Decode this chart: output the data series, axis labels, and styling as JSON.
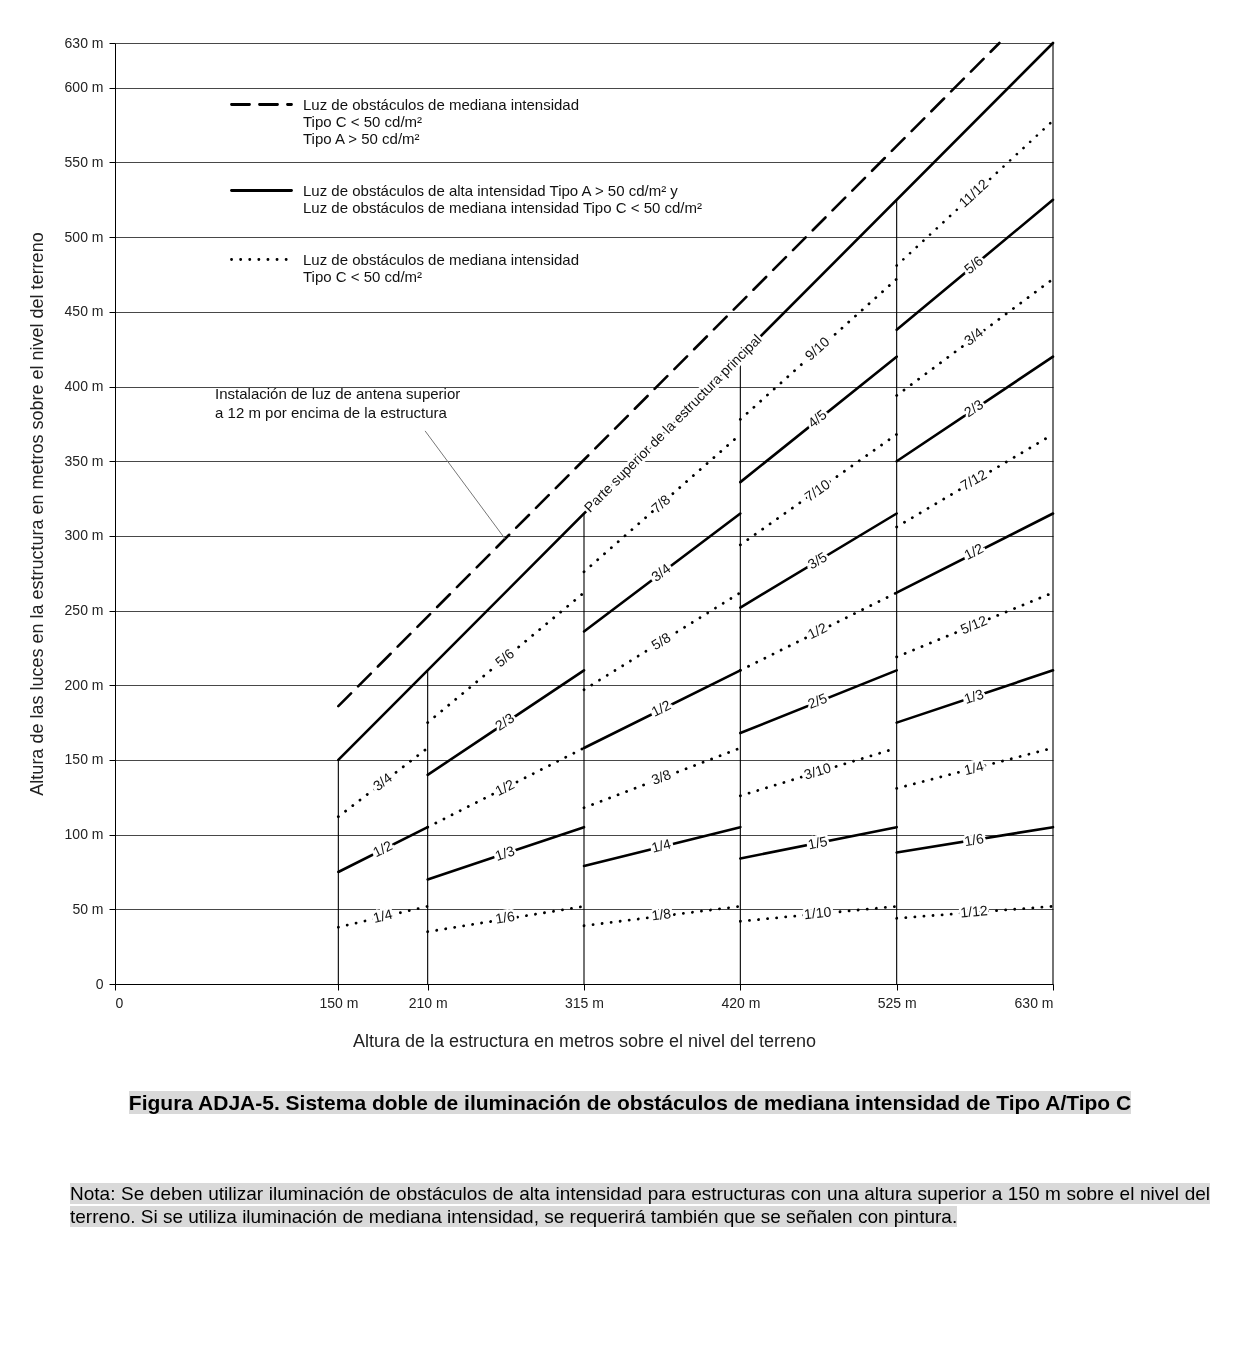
{
  "chart_data": {
    "type": "line",
    "title": "Figura ADJA-5. Sistema doble de iluminación de obstáculos de mediana intensidad de Tipo A/Tipo C",
    "xlabel": "Altura de la estructura en metros sobre el nivel del terreno",
    "ylabel": "Altura de las luces en la estructura en metros sobre el nivel del terreno",
    "xlim": [
      0,
      630
    ],
    "ylim": [
      0,
      630
    ],
    "xticks": [
      0,
      {
        "value": 150,
        "label": "150 m"
      },
      {
        "value": 210,
        "label": "210 m"
      },
      {
        "value": 315,
        "label": "315 m"
      },
      {
        "value": 420,
        "label": "420 m"
      },
      {
        "value": 525,
        "label": "525 m"
      },
      {
        "value": 630,
        "label": "630 m"
      }
    ],
    "yticks": [
      0,
      {
        "value": 50,
        "label": "50 m"
      },
      {
        "value": 100,
        "label": "100 m"
      },
      {
        "value": 150,
        "label": "150 m"
      },
      {
        "value": 200,
        "label": "200 m"
      },
      {
        "value": 250,
        "label": "250 m"
      },
      {
        "value": 300,
        "label": "300 m"
      },
      {
        "value": 350,
        "label": "350 m"
      },
      {
        "value": 400,
        "label": "400 m"
      },
      {
        "value": 450,
        "label": "450 m"
      },
      {
        "value": 500,
        "label": "500 m"
      },
      {
        "value": 550,
        "label": "550 m"
      },
      {
        "value": 600,
        "label": "600 m"
      },
      {
        "value": 630,
        "label": "630 m"
      }
    ],
    "grid": "y",
    "legend": "top left",
    "series": [
      {
        "name": "Luz de obstáculos de mediana intensidad\nTipo C < 50 cd/m²\nTipo A > 50 cd/m²",
        "color": "#000000",
        "line_style": "dashed",
        "x": [
          150,
          594
        ],
        "values": [
          186,
          630
        ]
      },
      {
        "name": "Luz de obstáculos de alta intensidad Tipo A > 50 cd/m² y\nLuz de obstáculos de mediana intensidad Tipo C < 50 cd/m²",
        "color": "#000000",
        "line_style": "solid",
        "x": [
          150,
          630
        ],
        "values": [
          150,
          630
        ]
      },
      {
        "name": "Luz de obstáculos de mediana intensidad\nTipo C < 50 cd/m²",
        "color": "#000000",
        "line_style": "dotted",
        "x": [
          525,
          630
        ],
        "values": [
          481,
          578
        ]
      },
      {
        "color": "#000000",
        "line_style": "solid",
        "x": [
          150,
          210
        ],
        "values": [
          75,
          105
        ]
      },
      {
        "color": "#000000",
        "line_style": "solid",
        "x": [
          210,
          315
        ],
        "values": [
          140,
          210
        ]
      },
      {
        "color": "#000000",
        "line_style": "solid",
        "x": [
          210,
          315
        ],
        "values": [
          70,
          105
        ]
      },
      {
        "color": "#000000",
        "line_style": "solid",
        "x": [
          315,
          420
        ],
        "values": [
          236,
          315
        ]
      },
      {
        "color": "#000000",
        "line_style": "solid",
        "x": [
          315,
          420
        ],
        "values": [
          158,
          210
        ]
      },
      {
        "color": "#000000",
        "line_style": "solid",
        "x": [
          315,
          420
        ],
        "values": [
          79,
          105
        ]
      },
      {
        "color": "#000000",
        "line_style": "solid",
        "x": [
          420,
          525
        ],
        "values": [
          336,
          420
        ]
      },
      {
        "color": "#000000",
        "line_style": "solid",
        "x": [
          420,
          525
        ],
        "values": [
          252,
          315
        ]
      },
      {
        "color": "#000000",
        "line_style": "solid",
        "x": [
          420,
          525
        ],
        "values": [
          168,
          210
        ]
      },
      {
        "color": "#000000",
        "line_style": "solid",
        "x": [
          420,
          525
        ],
        "values": [
          84,
          105
        ]
      },
      {
        "color": "#000000",
        "line_style": "solid",
        "x": [
          525,
          630
        ],
        "values": [
          438,
          525
        ]
      },
      {
        "color": "#000000",
        "line_style": "solid",
        "x": [
          525,
          630
        ],
        "values": [
          350,
          420
        ]
      },
      {
        "color": "#000000",
        "line_style": "solid",
        "x": [
          525,
          630
        ],
        "values": [
          262,
          315
        ]
      },
      {
        "color": "#000000",
        "line_style": "solid",
        "x": [
          525,
          630
        ],
        "values": [
          175,
          210
        ]
      },
      {
        "color": "#000000",
        "line_style": "solid",
        "x": [
          525,
          630
        ],
        "values": [
          88,
          105
        ]
      },
      {
        "color": "#000000",
        "line_style": "dotted",
        "x": [
          150,
          210
        ],
        "values": [
          112,
          158
        ]
      },
      {
        "color": "#000000",
        "line_style": "dotted",
        "x": [
          150,
          210
        ],
        "values": [
          38,
          52
        ]
      },
      {
        "color": "#000000",
        "line_style": "dotted",
        "x": [
          210,
          315
        ],
        "values": [
          175,
          262
        ]
      },
      {
        "color": "#000000",
        "line_style": "dotted",
        "x": [
          210,
          315
        ],
        "values": [
          105,
          158
        ]
      },
      {
        "color": "#000000",
        "line_style": "dotted",
        "x": [
          210,
          315
        ],
        "values": [
          35,
          52
        ]
      },
      {
        "color": "#000000",
        "line_style": "dotted",
        "x": [
          315,
          420
        ],
        "values": [
          276,
          368
        ]
      },
      {
        "color": "#000000",
        "line_style": "dotted",
        "x": [
          315,
          420
        ],
        "values": [
          197,
          262
        ]
      },
      {
        "color": "#000000",
        "line_style": "dotted",
        "x": [
          315,
          420
        ],
        "values": [
          118,
          158
        ]
      },
      {
        "color": "#000000",
        "line_style": "dotted",
        "x": [
          315,
          420
        ],
        "values": [
          39,
          52
        ]
      },
      {
        "color": "#000000",
        "line_style": "dotted",
        "x": [
          420,
          525
        ],
        "values": [
          378,
          472
        ]
      },
      {
        "color": "#000000",
        "line_style": "dotted",
        "x": [
          420,
          525
        ],
        "values": [
          294,
          368
        ]
      },
      {
        "color": "#000000",
        "line_style": "dotted",
        "x": [
          420,
          525
        ],
        "values": [
          210,
          262
        ]
      },
      {
        "color": "#000000",
        "line_style": "dotted",
        "x": [
          420,
          525
        ],
        "values": [
          126,
          158
        ]
      },
      {
        "color": "#000000",
        "line_style": "dotted",
        "x": [
          420,
          525
        ],
        "values": [
          42,
          52
        ]
      },
      {
        "color": "#000000",
        "line_style": "dotted",
        "x": [
          525,
          630
        ],
        "values": [
          394,
          472
        ]
      },
      {
        "color": "#000000",
        "line_style": "dotted",
        "x": [
          525,
          630
        ],
        "values": [
          306,
          368
        ]
      },
      {
        "color": "#000000",
        "line_style": "dotted",
        "x": [
          525,
          630
        ],
        "values": [
          219,
          262
        ]
      },
      {
        "color": "#000000",
        "line_style": "dotted",
        "x": [
          525,
          630
        ],
        "values": [
          131,
          158
        ]
      },
      {
        "color": "#000000",
        "line_style": "dotted",
        "x": [
          525,
          630
        ],
        "values": [
          44,
          52
        ]
      },
      {
        "color": "#000000",
        "line_style": "solid",
        "x": [
          150,
          150
        ],
        "values": [
          0,
          150
        ]
      },
      {
        "color": "#000000",
        "line_style": "solid",
        "x": [
          210,
          210
        ],
        "values": [
          0,
          210
        ]
      },
      {
        "color": "#000000",
        "line_style": "solid",
        "x": [
          315,
          315
        ],
        "values": [
          0,
          315
        ]
      },
      {
        "color": "#000000",
        "line_style": "solid",
        "x": [
          420,
          420
        ],
        "values": [
          0,
          420
        ]
      },
      {
        "color": "#000000",
        "line_style": "solid",
        "x": [
          525,
          525
        ],
        "values": [
          0,
          525
        ]
      }
    ],
    "ref_lines": [
      {
        "axis": "x",
        "value": 630,
        "color": "#000000"
      }
    ],
    "annotations": [
      {
        "text": "Instalación de luz de antena superior\na 12 m por encima de la estructura",
        "x": 262,
        "y": 298
      },
      {
        "text": "Parte superior de la estructura principal",
        "x": 375,
        "y": 375
      },
      {
        "text": "3/4",
        "x": 180,
        "y": 135
      },
      {
        "text": "1/2",
        "x": 180,
        "y": 90
      },
      {
        "text": "1/4",
        "x": 180,
        "y": 45
      },
      {
        "text": "5/6",
        "x": 262,
        "y": 218
      },
      {
        "text": "2/3",
        "x": 262,
        "y": 175
      },
      {
        "text": "1/2",
        "x": 262,
        "y": 131
      },
      {
        "text": "1/3",
        "x": 262,
        "y": 87
      },
      {
        "text": "1/6",
        "x": 262,
        "y": 44
      },
      {
        "text": "7/8",
        "x": 367,
        "y": 321
      },
      {
        "text": "3/4",
        "x": 367,
        "y": 275
      },
      {
        "text": "5/8",
        "x": 367,
        "y": 229
      },
      {
        "text": "1/2",
        "x": 367,
        "y": 184
      },
      {
        "text": "3/8",
        "x": 367,
        "y": 138
      },
      {
        "text": "1/4",
        "x": 367,
        "y": 92
      },
      {
        "text": "1/8",
        "x": 367,
        "y": 46
      },
      {
        "text": "9/10",
        "x": 472,
        "y": 425
      },
      {
        "text": "4/5",
        "x": 472,
        "y": 378
      },
      {
        "text": "7/10",
        "x": 472,
        "y": 330
      },
      {
        "text": "3/5",
        "x": 472,
        "y": 283
      },
      {
        "text": "1/2",
        "x": 472,
        "y": 236
      },
      {
        "text": "2/5",
        "x": 472,
        "y": 189
      },
      {
        "text": "3/10",
        "x": 472,
        "y": 142
      },
      {
        "text": "1/5",
        "x": 472,
        "y": 94
      },
      {
        "text": "1/10",
        "x": 472,
        "y": 47
      },
      {
        "text": "11/12",
        "x": 577,
        "y": 529
      },
      {
        "text": "5/6",
        "x": 577,
        "y": 481
      },
      {
        "text": "3/4",
        "x": 577,
        "y": 433
      },
      {
        "text": "2/3",
        "x": 577,
        "y": 385
      },
      {
        "text": "7/12",
        "x": 577,
        "y": 337
      },
      {
        "text": "1/2",
        "x": 577,
        "y": 289
      },
      {
        "text": "5/12",
        "x": 577,
        "y": 240
      },
      {
        "text": "1/3",
        "x": 577,
        "y": 192
      },
      {
        "text": "1/4",
        "x": 577,
        "y": 144
      },
      {
        "text": "1/6",
        "x": 577,
        "y": 96
      },
      {
        "text": "1/12",
        "x": 577,
        "y": 48
      },
      "Nota: Se deben utilizar iluminación de obstáculos de alta intensidad para estructuras con una altura superior a 150 m sobre el nivel del terreno. Si se utiliza iluminación de mediana intensidad, se requerirá también que se señalen con pintura."
    ]
  }
}
